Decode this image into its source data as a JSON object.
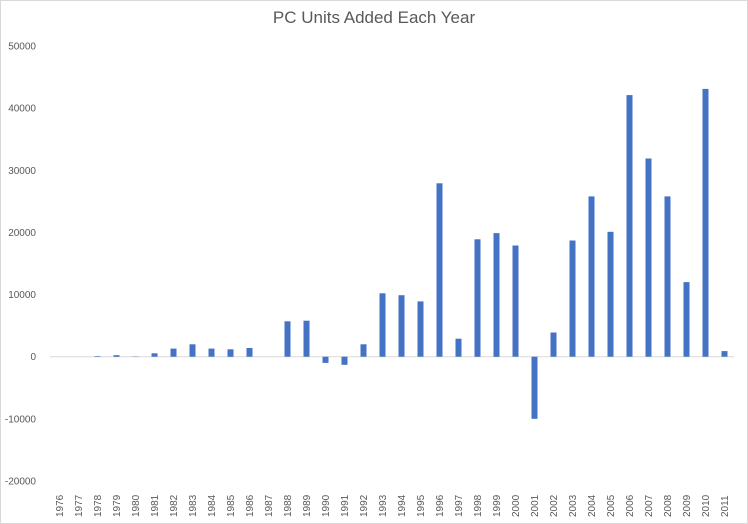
{
  "chart_data": {
    "type": "bar",
    "title": "PC Units Added Each Year",
    "xlabel": "",
    "ylabel": "",
    "ylim": [
      -20000,
      50000
    ],
    "yticks": [
      50000,
      40000,
      30000,
      20000,
      10000,
      0,
      -10000,
      -20000
    ],
    "grid": false,
    "legend": "none",
    "bar_color": "#4472c4",
    "categories": [
      "1976",
      "1977",
      "1978",
      "1979",
      "1980",
      "1981",
      "1982",
      "1983",
      "1984",
      "1985",
      "1986",
      "1987",
      "1988",
      "1989",
      "1990",
      "1991",
      "1992",
      "1993",
      "1994",
      "1995",
      "1996",
      "1997",
      "1998",
      "1999",
      "2000",
      "2001",
      "2002",
      "2003",
      "2004",
      "2005",
      "2006",
      "2007",
      "2008",
      "2009",
      "2010",
      "2011"
    ],
    "values": [
      0,
      0,
      100,
      250,
      50,
      550,
      1300,
      2000,
      1300,
      1200,
      1400,
      0,
      5700,
      5800,
      -1000,
      -1300,
      2000,
      10200,
      9900,
      8900,
      27900,
      2900,
      18900,
      19900,
      17900,
      -10000,
      3900,
      18700,
      25800,
      20100,
      42100,
      31900,
      25800,
      12000,
      43100,
      900
    ]
  }
}
